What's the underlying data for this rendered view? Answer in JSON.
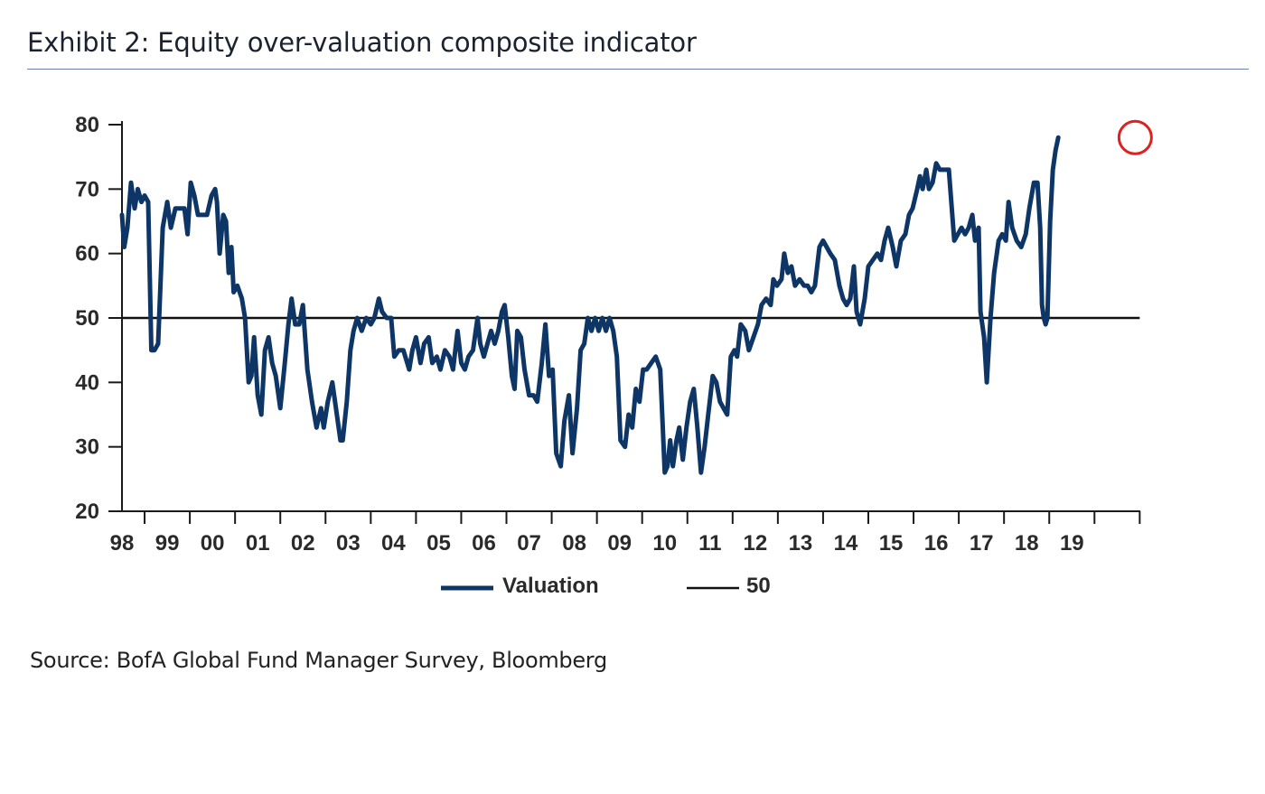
{
  "title": "Exhibit 2: Equity over-valuation composite indicator",
  "source": "Source: BofA Global Fund Manager Survey, Bloomberg",
  "colors": {
    "series": "#0d3566",
    "reference": "#111111",
    "highlight": "#e02020",
    "title_rule": "#6b82a8"
  },
  "chart_data": {
    "type": "line",
    "title": "",
    "xlabel": "",
    "ylabel": "",
    "ylim": [
      20,
      80
    ],
    "yticks": [
      20,
      30,
      40,
      50,
      60,
      70,
      80
    ],
    "xlim": [
      1997.5,
      2020.0
    ],
    "xtick_labels": [
      "98",
      "99",
      "00",
      "01",
      "02",
      "03",
      "04",
      "05",
      "06",
      "07",
      "08",
      "09",
      "10",
      "11",
      "12",
      "13",
      "14",
      "15",
      "16",
      "17",
      "18",
      "19"
    ],
    "legend_position": "bottom-center",
    "grid": false,
    "highlight": {
      "x": 2019.9,
      "y": 78,
      "shape": "circle"
    },
    "series": [
      {
        "name": "Valuation",
        "values": [
          [
            1997.5,
            66
          ],
          [
            1997.55,
            61
          ],
          [
            1997.62,
            64
          ],
          [
            1997.7,
            71
          ],
          [
            1997.78,
            67
          ],
          [
            1997.85,
            70
          ],
          [
            1997.93,
            68
          ],
          [
            1998.0,
            69
          ],
          [
            1998.08,
            68
          ],
          [
            1998.15,
            45
          ],
          [
            1998.22,
            45
          ],
          [
            1998.3,
            46
          ],
          [
            1998.4,
            64
          ],
          [
            1998.5,
            68
          ],
          [
            1998.58,
            64
          ],
          [
            1998.68,
            67
          ],
          [
            1998.78,
            67
          ],
          [
            1998.88,
            67
          ],
          [
            1998.95,
            63
          ],
          [
            1999.02,
            71
          ],
          [
            1999.1,
            69
          ],
          [
            1999.18,
            66
          ],
          [
            1999.28,
            66
          ],
          [
            1999.38,
            66
          ],
          [
            1999.48,
            69
          ],
          [
            1999.56,
            70
          ],
          [
            1999.6,
            68
          ],
          [
            1999.66,
            60
          ],
          [
            1999.74,
            66
          ],
          [
            1999.8,
            65
          ],
          [
            1999.86,
            57
          ],
          [
            1999.92,
            61
          ],
          [
            1999.97,
            54
          ],
          [
            2000.05,
            55
          ],
          [
            2000.15,
            53
          ],
          [
            2000.22,
            50
          ],
          [
            2000.3,
            40
          ],
          [
            2000.36,
            41
          ],
          [
            2000.42,
            47
          ],
          [
            2000.5,
            38
          ],
          [
            2000.58,
            35
          ],
          [
            2000.66,
            45
          ],
          [
            2000.74,
            47
          ],
          [
            2000.82,
            43
          ],
          [
            2000.9,
            41
          ],
          [
            2001.0,
            36
          ],
          [
            2001.1,
            43
          ],
          [
            2001.18,
            49
          ],
          [
            2001.25,
            53
          ],
          [
            2001.33,
            49
          ],
          [
            2001.42,
            49
          ],
          [
            2001.5,
            52
          ],
          [
            2001.6,
            42
          ],
          [
            2001.7,
            37
          ],
          [
            2001.8,
            33
          ],
          [
            2001.9,
            36
          ],
          [
            2001.96,
            33
          ],
          [
            2002.05,
            37
          ],
          [
            2002.15,
            40
          ],
          [
            2002.25,
            35
          ],
          [
            2002.33,
            31
          ],
          [
            2002.38,
            31
          ],
          [
            2002.47,
            37
          ],
          [
            2002.55,
            45
          ],
          [
            2002.62,
            48
          ],
          [
            2002.7,
            50
          ],
          [
            2002.8,
            48
          ],
          [
            2002.9,
            50
          ],
          [
            2003.0,
            49
          ],
          [
            2003.08,
            50
          ],
          [
            2003.18,
            53
          ],
          [
            2003.25,
            51
          ],
          [
            2003.35,
            50
          ],
          [
            2003.45,
            50
          ],
          [
            2003.52,
            44
          ],
          [
            2003.62,
            45
          ],
          [
            2003.72,
            45
          ],
          [
            2003.85,
            42
          ],
          [
            2003.92,
            45
          ],
          [
            2004.0,
            47
          ],
          [
            2004.1,
            43
          ],
          [
            2004.18,
            46
          ],
          [
            2004.28,
            47
          ],
          [
            2004.36,
            43
          ],
          [
            2004.46,
            44
          ],
          [
            2004.54,
            42
          ],
          [
            2004.64,
            45
          ],
          [
            2004.74,
            44
          ],
          [
            2004.82,
            42
          ],
          [
            2004.92,
            48
          ],
          [
            2005.0,
            43
          ],
          [
            2005.08,
            42
          ],
          [
            2005.16,
            44
          ],
          [
            2005.26,
            45
          ],
          [
            2005.36,
            50
          ],
          [
            2005.42,
            46
          ],
          [
            2005.5,
            44
          ],
          [
            2005.58,
            46
          ],
          [
            2005.66,
            48
          ],
          [
            2005.74,
            46
          ],
          [
            2005.82,
            48
          ],
          [
            2005.9,
            51
          ],
          [
            2005.96,
            52
          ],
          [
            2006.04,
            47
          ],
          [
            2006.12,
            41
          ],
          [
            2006.18,
            39
          ],
          [
            2006.24,
            48
          ],
          [
            2006.32,
            47
          ],
          [
            2006.4,
            42
          ],
          [
            2006.5,
            38
          ],
          [
            2006.6,
            38
          ],
          [
            2006.68,
            37
          ],
          [
            2006.78,
            43
          ],
          [
            2006.86,
            49
          ],
          [
            2006.94,
            41
          ],
          [
            2007.02,
            42
          ],
          [
            2007.1,
            29
          ],
          [
            2007.2,
            27
          ],
          [
            2007.28,
            34
          ],
          [
            2007.38,
            38
          ],
          [
            2007.46,
            29
          ],
          [
            2007.56,
            36
          ],
          [
            2007.64,
            45
          ],
          [
            2007.72,
            46
          ],
          [
            2007.8,
            50
          ],
          [
            2007.88,
            48
          ],
          [
            2007.96,
            50
          ],
          [
            2008.04,
            48
          ],
          [
            2008.12,
            50
          ],
          [
            2008.2,
            48
          ],
          [
            2008.28,
            50
          ],
          [
            2008.36,
            48
          ],
          [
            2008.44,
            44
          ],
          [
            2008.52,
            31
          ],
          [
            2008.62,
            30
          ],
          [
            2008.7,
            35
          ],
          [
            2008.78,
            33
          ],
          [
            2008.86,
            39
          ],
          [
            2008.94,
            37
          ],
          [
            2009.02,
            42
          ],
          [
            2009.1,
            42
          ],
          [
            2009.2,
            43
          ],
          [
            2009.3,
            44
          ],
          [
            2009.4,
            42
          ],
          [
            2009.5,
            26
          ],
          [
            2009.56,
            27
          ],
          [
            2009.62,
            31
          ],
          [
            2009.68,
            27
          ],
          [
            2009.76,
            31
          ],
          [
            2009.82,
            33
          ],
          [
            2009.9,
            28
          ],
          [
            2009.98,
            33
          ],
          [
            2010.06,
            37
          ],
          [
            2010.14,
            39
          ],
          [
            2010.22,
            33
          ],
          [
            2010.3,
            26
          ],
          [
            2010.38,
            30
          ],
          [
            2010.46,
            35
          ],
          [
            2010.56,
            41
          ],
          [
            2010.64,
            40
          ],
          [
            2010.72,
            37
          ],
          [
            2010.8,
            36
          ],
          [
            2010.88,
            35
          ],
          [
            2010.96,
            44
          ],
          [
            2011.04,
            45
          ],
          [
            2011.1,
            44
          ],
          [
            2011.18,
            49
          ],
          [
            2011.28,
            48
          ],
          [
            2011.36,
            45
          ],
          [
            2011.46,
            47
          ],
          [
            2011.56,
            49
          ],
          [
            2011.64,
            52
          ],
          [
            2011.74,
            53
          ],
          [
            2011.84,
            52
          ],
          [
            2011.9,
            56
          ],
          [
            2011.98,
            55
          ],
          [
            2012.08,
            56
          ],
          [
            2012.14,
            60
          ],
          [
            2012.22,
            57
          ],
          [
            2012.3,
            58
          ],
          [
            2012.38,
            55
          ],
          [
            2012.48,
            56
          ],
          [
            2012.58,
            55
          ],
          [
            2012.66,
            55
          ],
          [
            2012.74,
            54
          ],
          [
            2012.82,
            55
          ],
          [
            2012.92,
            61
          ],
          [
            2013.0,
            62
          ],
          [
            2013.08,
            61
          ],
          [
            2013.16,
            60
          ],
          [
            2013.26,
            59
          ],
          [
            2013.36,
            55
          ],
          [
            2013.44,
            53
          ],
          [
            2013.52,
            52
          ],
          [
            2013.6,
            53
          ],
          [
            2013.68,
            58
          ],
          [
            2013.74,
            51
          ],
          [
            2013.82,
            49
          ],
          [
            2013.92,
            53
          ],
          [
            2014.0,
            58
          ],
          [
            2014.1,
            59
          ],
          [
            2014.2,
            60
          ],
          [
            2014.28,
            59
          ],
          [
            2014.36,
            62
          ],
          [
            2014.44,
            64
          ],
          [
            2014.54,
            61
          ],
          [
            2014.62,
            58
          ],
          [
            2014.72,
            62
          ],
          [
            2014.82,
            63
          ],
          [
            2014.9,
            66
          ],
          [
            2014.98,
            67
          ],
          [
            2015.08,
            70
          ],
          [
            2015.14,
            72
          ],
          [
            2015.2,
            70
          ],
          [
            2015.28,
            73
          ],
          [
            2015.34,
            70
          ],
          [
            2015.42,
            71
          ],
          [
            2015.5,
            74
          ],
          [
            2015.58,
            73
          ],
          [
            2015.66,
            73
          ],
          [
            2015.78,
            73
          ],
          [
            2015.9,
            62
          ],
          [
            2015.98,
            63
          ],
          [
            2016.06,
            64
          ],
          [
            2016.14,
            63
          ],
          [
            2016.22,
            64
          ],
          [
            2016.3,
            66
          ],
          [
            2016.36,
            62
          ],
          [
            2016.44,
            64
          ],
          [
            2016.48,
            51
          ],
          [
            2016.56,
            47
          ],
          [
            2016.62,
            40
          ],
          [
            2016.7,
            50
          ],
          [
            2016.78,
            57
          ],
          [
            2016.88,
            62
          ],
          [
            2016.96,
            63
          ],
          [
            2017.04,
            62
          ],
          [
            2017.1,
            68
          ],
          [
            2017.18,
            64
          ],
          [
            2017.28,
            62
          ],
          [
            2017.38,
            61
          ],
          [
            2017.48,
            63
          ],
          [
            2017.56,
            67
          ],
          [
            2017.66,
            71
          ],
          [
            2017.74,
            71
          ],
          [
            2017.8,
            64
          ],
          [
            2017.84,
            52
          ],
          [
            2017.88,
            50
          ],
          [
            2017.92,
            49
          ],
          [
            2017.96,
            50
          ],
          [
            2018.02,
            65
          ],
          [
            2018.08,
            73
          ],
          [
            2018.14,
            76
          ],
          [
            2018.2,
            78
          ]
        ]
      },
      {
        "name": "50",
        "values": [
          [
            1997.5,
            50
          ],
          [
            2020.0,
            50
          ]
        ]
      }
    ]
  }
}
